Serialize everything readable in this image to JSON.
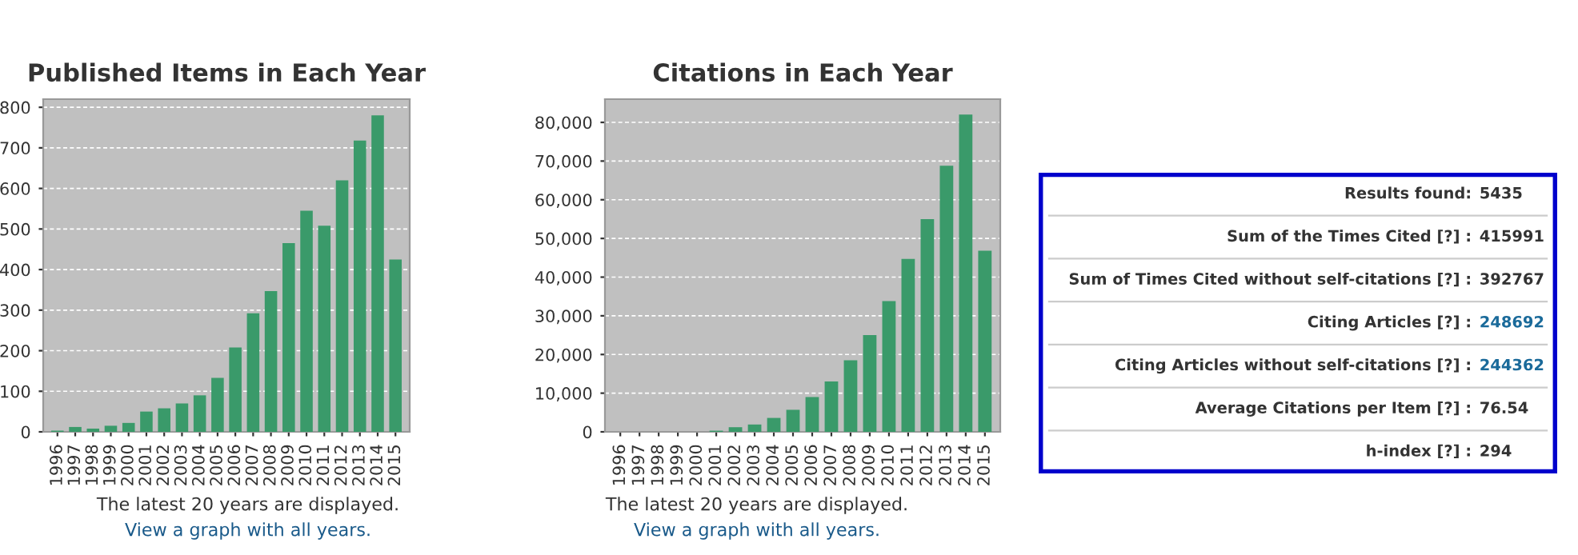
{
  "chart_data": [
    {
      "type": "bar",
      "title": "Published Items in Each Year",
      "categories": [
        "1996",
        "1997",
        "1998",
        "1999",
        "2000",
        "2001",
        "2002",
        "2003",
        "2004",
        "2005",
        "2006",
        "2007",
        "2008",
        "2009",
        "2010",
        "2011",
        "2012",
        "2013",
        "2014",
        "2015"
      ],
      "values": [
        3,
        12,
        8,
        15,
        22,
        50,
        58,
        70,
        90,
        133,
        208,
        292,
        347,
        465,
        545,
        508,
        620,
        718,
        780,
        425
      ],
      "color": "#3a9a6a",
      "ylim": [
        0,
        820
      ],
      "yticks": [
        0,
        100,
        200,
        300,
        400,
        500,
        600,
        700,
        800
      ],
      "grid": "y",
      "annotations": [
        "The latest 20 years are displayed.",
        "View a graph with all years."
      ]
    },
    {
      "type": "bar",
      "title": "Citations in Each Year",
      "categories": [
        "1996",
        "1997",
        "1998",
        "1999",
        "2000",
        "2001",
        "2002",
        "2003",
        "2004",
        "2005",
        "2006",
        "2007",
        "2008",
        "2009",
        "2010",
        "2011",
        "2012",
        "2013",
        "2014",
        "2015"
      ],
      "values": [
        0,
        0,
        0,
        0,
        0,
        300,
        1200,
        1900,
        3600,
        5700,
        9000,
        13000,
        18500,
        25000,
        33800,
        44700,
        55000,
        68800,
        82000,
        46800
      ],
      "color": "#3a9a6a",
      "ylim": [
        0,
        86000
      ],
      "yticks": [
        0,
        {
          "value": 10000,
          "label": "10,000"
        },
        {
          "value": 20000,
          "label": "20,000"
        },
        {
          "value": 30000,
          "label": "30,000"
        },
        {
          "value": 40000,
          "label": "40,000"
        },
        {
          "value": 50000,
          "label": "50,000"
        },
        {
          "value": 60000,
          "label": "60,000"
        },
        {
          "value": 70000,
          "label": "70,000"
        },
        {
          "value": 80000,
          "label": "80,000"
        }
      ],
      "grid": "y",
      "annotations": [
        "The latest 20 years are displayed.",
        "View a graph with all years."
      ]
    },
    {
      "type": "other",
      "annotations": [
        "Results found:",
        "5435",
        "Sum of the Times Cited [?] :",
        "415991",
        "Sum of Times Cited without self-citations [?] :",
        "392767",
        "Citing Articles [?] :",
        "248692",
        "Citing Articles without self-citations [?] :",
        "244362",
        "Average Citations per Item [?] :",
        "76.54",
        "h-index [?] :",
        "294"
      ]
    }
  ]
}
